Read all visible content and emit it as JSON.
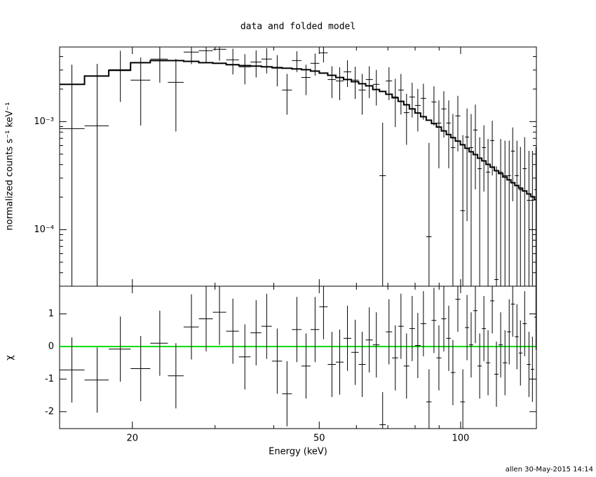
{
  "chart_data": [
    {
      "type": "errorbar",
      "title": "data and folded model",
      "ylabel": "normalized counts s⁻¹ keV⁻¹",
      "log_x": true,
      "log_y": true,
      "color": "#000000",
      "model_color": "#000000",
      "xlim": [
        14,
        145
      ],
      "ylim": [
        3e-05,
        0.0049
      ],
      "xticks": [
        20,
        50,
        100
      ],
      "xminorticks": [
        30,
        40,
        60,
        70,
        80,
        90
      ],
      "yticks": [
        {
          "value": 0.001,
          "label": "10⁻³"
        },
        {
          "value": 0.0001,
          "label": "10⁻⁴"
        }
      ],
      "yminorticks": [
        4e-05,
        5e-05,
        6e-05,
        7e-05,
        8e-05,
        9e-05,
        0.0002,
        0.0003,
        0.0004,
        0.0005,
        0.0006,
        0.0007,
        0.0008,
        0.0009,
        0.002,
        0.003,
        0.004
      ],
      "x": [
        14.87,
        16.83,
        18.86,
        20.84,
        22.88,
        24.76,
        26.72,
        28.72,
        30.66,
        32.74,
        34.72,
        36.69,
        38.64,
        40.69,
        42.69,
        44.8,
        46.86,
        48.99,
        51.06,
        53.21,
        55.28,
        57.42,
        59.64,
        61.72,
        63.9,
        66.15,
        68.23,
        70.39,
        72.6,
        74.64,
        76.71,
        78.86,
        81.07,
        83.33,
        85.65,
        87.75,
        89.9,
        92.1,
        94.34,
        96.29,
        98.65,
        101.1,
        103.2,
        105.3,
        107.5,
        109.8,
        112.1,
        114.4,
        116.8,
        119.2,
        121.7,
        124.3,
        126.9,
        129.1,
        131.8,
        134.1,
        136.9,
        139.8,
        142.2,
        144.7
      ],
      "values": [
        0.000861,
        0.000914,
        0.00302,
        0.00242,
        0.00379,
        0.00231,
        0.0044,
        0.00453,
        0.00467,
        0.00373,
        0.00321,
        0.00356,
        0.00379,
        0.00312,
        0.00196,
        0.00367,
        0.00256,
        0.00346,
        0.00433,
        0.00245,
        0.00238,
        0.00289,
        0.00242,
        0.00196,
        0.00245,
        0.00221,
        0.000316,
        0.00238,
        0.00169,
        0.00196,
        0.00121,
        0.00169,
        0.00141,
        0.00164,
        8.6e-05,
        0.00152,
        0.00097,
        0.00131,
        0.00097,
        0.000575,
        0.00113,
        0.00015,
        0.00072,
        0.000575,
        0.000836,
        0.000367,
        0.000575,
        0.000341,
        0.000668,
        3.46e-05,
        0.000341,
        0.000316,
        0.000316,
        0.000533,
        0.000316,
        0.000234,
        0.000367,
        0.000187,
        0.000187,
        0.000234
      ],
      "errors": [
        0.0025,
        0.0025,
        0.0015,
        0.0015,
        0.0015,
        0.0015,
        0.001,
        0.001,
        0.001,
        0.001,
        0.001,
        0.001,
        0.001,
        0.001,
        0.0008,
        0.0008,
        0.0008,
        0.0008,
        0.0008,
        0.0008,
        0.0008,
        0.0008,
        0.0008,
        0.0008,
        0.0008,
        0.0008,
        0.00066,
        0.0008,
        0.0008,
        0.0008,
        0.0006,
        0.0006,
        0.0006,
        0.0006,
        0.00055,
        0.0006,
        0.0006,
        0.0006,
        0.0006,
        0.0006,
        0.0006,
        0.0006,
        0.0006,
        0.0006,
        0.0006,
        0.00035,
        0.00035,
        0.00035,
        0.00035,
        0.00035,
        0.00035,
        0.00035,
        0.00035,
        0.00035,
        0.00035,
        0.00035,
        0.00035,
        0.00035,
        0.00035,
        0.00035
      ],
      "model": [
        0.00221,
        0.00264,
        0.00298,
        0.00351,
        0.00367,
        0.00367,
        0.00361,
        0.00351,
        0.00346,
        0.00336,
        0.0033,
        0.00326,
        0.00321,
        0.00316,
        0.00312,
        0.00307,
        0.00302,
        0.00293,
        0.00281,
        0.00268,
        0.00256,
        0.00245,
        0.00234,
        0.00224,
        0.00214,
        0.00198,
        0.0019,
        0.00179,
        0.00166,
        0.00154,
        0.00143,
        0.00131,
        0.0012,
        0.00111,
        0.00103,
        0.00096,
        0.00089,
        0.00082,
        0.00076,
        0.00071,
        0.00066,
        0.00061,
        0.000567,
        0.000526,
        0.000495,
        0.000459,
        0.000433,
        0.000402,
        0.000379,
        0.000351,
        0.000331,
        0.000307,
        0.000289,
        0.000272,
        0.000256,
        0.000242,
        0.000228,
        0.000214,
        0.000202,
        0.00019
      ]
    },
    {
      "type": "residual",
      "xlabel": "Energy (keV)",
      "ylabel": "χ",
      "log_x": true,
      "color": "#000000",
      "xlim": [
        14,
        145
      ],
      "ylim": [
        -2.52,
        1.85
      ],
      "xticks": [
        20,
        50,
        100
      ],
      "xminorticks": [
        30,
        40,
        60,
        70,
        80,
        90
      ],
      "yticks": [
        -2,
        -1,
        0,
        1
      ],
      "zero_line": {
        "value": 0,
        "color": "#00dd00"
      },
      "x": [
        14.87,
        16.83,
        18.86,
        20.84,
        22.88,
        24.76,
        26.72,
        28.72,
        30.66,
        32.74,
        34.72,
        36.69,
        38.64,
        40.69,
        42.69,
        44.8,
        46.86,
        48.99,
        51.06,
        53.21,
        55.28,
        57.42,
        59.64,
        61.72,
        63.9,
        66.15,
        68.23,
        70.39,
        72.6,
        74.64,
        76.71,
        78.86,
        81.07,
        83.33,
        85.65,
        87.75,
        89.9,
        92.1,
        94.34,
        96.29,
        98.65,
        101.1,
        103.2,
        105.3,
        107.5,
        109.8,
        112.1,
        114.4,
        116.8,
        119.2,
        121.7,
        124.3,
        126.9,
        129.1,
        131.8,
        134.1,
        136.9,
        139.8,
        142.2,
        144.7
      ],
      "values": [
        -0.72,
        -1.03,
        -0.08,
        -0.68,
        0.1,
        -0.9,
        0.6,
        0.85,
        1.05,
        0.47,
        -0.32,
        0.42,
        0.62,
        -0.45,
        -1.45,
        0.52,
        -0.6,
        0.52,
        1.22,
        -0.55,
        -0.48,
        0.25,
        -0.18,
        -0.55,
        0.2,
        0.05,
        -2.4,
        0.45,
        -0.35,
        0.62,
        -0.6,
        0.55,
        0.03,
        0.7,
        -1.7,
        0.8,
        -0.35,
        0.85,
        0.25,
        -0.8,
        1.45,
        -1.7,
        0.58,
        0.05,
        1.1,
        -0.6,
        0.55,
        -0.5,
        1.4,
        -0.85,
        0.05,
        -0.5,
        0.45,
        1.3,
        0.3,
        -0.2,
        0.7,
        -0.55,
        -0.7,
        0.9
      ],
      "errors": [
        1,
        1,
        1,
        1,
        1,
        1,
        1,
        1,
        1,
        1,
        1,
        1,
        1,
        1,
        1,
        1,
        1,
        1,
        1,
        1,
        1,
        1,
        1,
        1,
        1,
        1,
        1,
        1,
        1,
        1,
        1,
        1,
        1,
        1,
        1,
        1,
        1,
        1,
        1,
        1,
        1,
        1,
        1,
        1,
        1,
        1,
        1,
        1,
        1,
        1,
        1,
        1,
        1,
        1,
        1,
        1,
        1,
        1,
        1,
        1
      ]
    }
  ],
  "footer": "allen 30-May-2015 14:14"
}
